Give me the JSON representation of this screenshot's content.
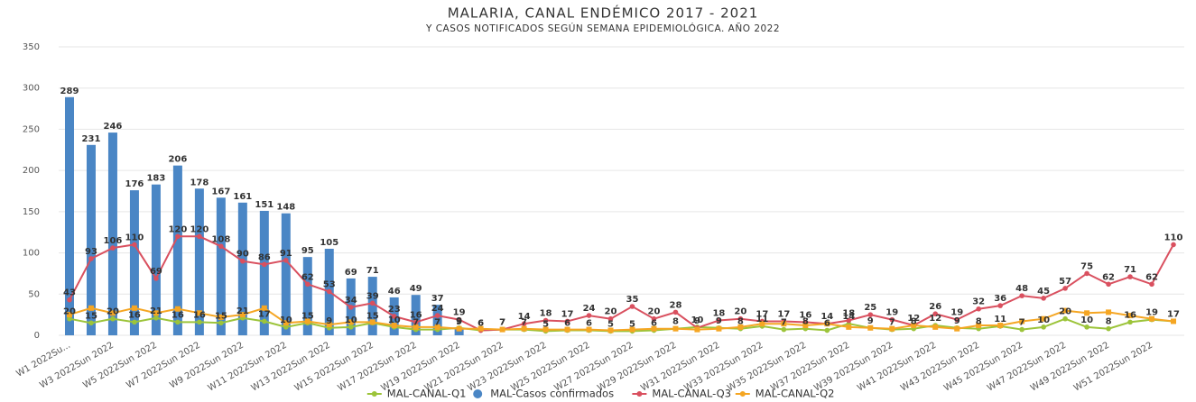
{
  "chart_data": {
    "type": "bar-line",
    "title": "MALARIA, CANAL ENDÉMICO 2017 - 2021",
    "subtitle": "Y CASOS NOTIFICADOS SEGÚN SEMANA EPIDEMIOLÓGICA. AÑO 2022",
    "categories": [
      "W1 2022Su...",
      null,
      "W3 2022Sun 2022",
      null,
      "W5 2022Sun 2022",
      null,
      "W7 2022Sun 2022",
      null,
      "W9 2022Sun 2022",
      null,
      "W11 2022Sun 2022",
      null,
      "W13 2022Sun 2022",
      null,
      "W15 2022Sun 2022",
      null,
      "W17 2022Sun 2022",
      null,
      "W19 2022Sun 2022",
      null,
      "W21 2022Sun 2022",
      null,
      "W23 2022Sun 2022",
      null,
      "W25 2022Sun 2022",
      null,
      "W27 2022Sun 2022",
      null,
      "W29 2022Sun 2022",
      null,
      "W31 2022Sun 2022",
      null,
      "W33 2022Sun 2022",
      null,
      "W35 2022Sun 2022",
      null,
      "W37 2022Sun 2022",
      null,
      "W39 2022Sun 2022",
      null,
      "W41 2022Sun 2022",
      null,
      "W43 2022Sun 2022",
      null,
      "W45 2022Sun 2022",
      null,
      "W47 2022Sun 2022",
      null,
      "W49 2022Sun 2022",
      null,
      "W51 2022Sun 2022",
      null
    ],
    "series": [
      {
        "name": "MAL-CANAL-Q1",
        "kind": "line",
        "color": "#9cc43a",
        "labels": true,
        "values": [
          20,
          15,
          20,
          16,
          21,
          16,
          16,
          15,
          21,
          17,
          10,
          15,
          9,
          10,
          15,
          10,
          7,
          7,
          9,
          6,
          7,
          7,
          5,
          6,
          6,
          5,
          5,
          6,
          8,
          10,
          9,
          8,
          11,
          7,
          8,
          6,
          14,
          9,
          7,
          8,
          12,
          9,
          8,
          11,
          7,
          10,
          20,
          10,
          8,
          16,
          19,
          17
        ]
      },
      {
        "name": "MAL-Casos confirmados",
        "kind": "bar",
        "color": "#4a86c5",
        "labels": true,
        "values": [
          289,
          231,
          246,
          176,
          183,
          206,
          178,
          167,
          161,
          151,
          148,
          95,
          105,
          69,
          71,
          46,
          49,
          37,
          9,
          null,
          null,
          null,
          null,
          null,
          null,
          null,
          null,
          null,
          null,
          null,
          null,
          null,
          null,
          null,
          null,
          null,
          null,
          null,
          null,
          null,
          null,
          null,
          null,
          null,
          null,
          null,
          null,
          null,
          null,
          null,
          null,
          null
        ]
      },
      {
        "name": "MAL-CANAL-Q3",
        "kind": "line",
        "color": "#d9505f",
        "labels": true,
        "values": [
          43,
          93,
          106,
          110,
          69,
          120,
          120,
          108,
          90,
          86,
          91,
          62,
          53,
          34,
          39,
          23,
          16,
          24,
          19,
          6,
          7,
          14,
          18,
          17,
          24,
          20,
          35,
          20,
          28,
          9,
          18,
          20,
          17,
          17,
          16,
          14,
          18,
          25,
          19,
          12,
          26,
          19,
          32,
          36,
          48,
          45,
          57,
          75,
          62,
          71,
          62,
          110
        ]
      },
      {
        "name": "MAL-CANAL-Q2",
        "kind": "line",
        "color": "#f5a623",
        "labels": false,
        "values": [
          25,
          33,
          27,
          33,
          27,
          32,
          27,
          22,
          25,
          33,
          15,
          17,
          13,
          16,
          16,
          12,
          10,
          10,
          8,
          8,
          7,
          8,
          7,
          7,
          7,
          6,
          7,
          8,
          8,
          7,
          8,
          10,
          14,
          14,
          12,
          14,
          10,
          9,
          8,
          12,
          10,
          8,
          12,
          12,
          17,
          20,
          30,
          27,
          28,
          24,
          20,
          17
        ]
      }
    ],
    "ylim": [
      0,
      350
    ],
    "yticks": [
      0,
      50,
      100,
      150,
      200,
      250,
      300,
      350
    ],
    "grid": true,
    "legend": "bottom"
  }
}
